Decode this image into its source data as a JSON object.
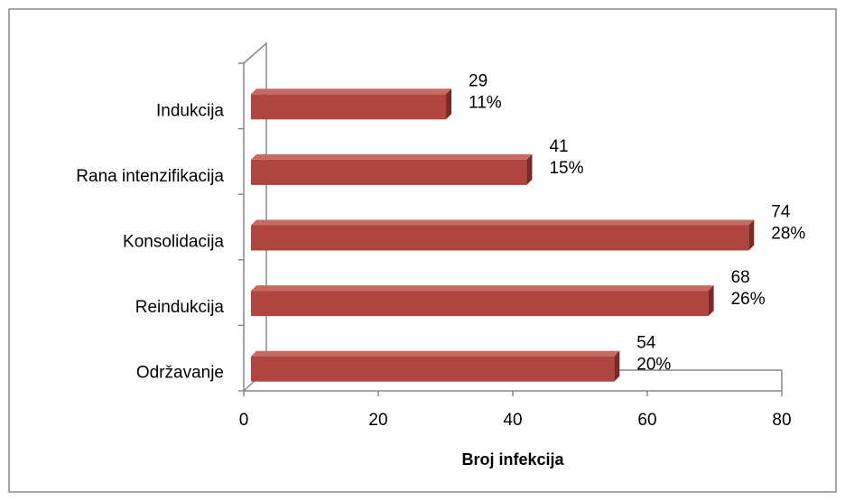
{
  "chart_data": {
    "type": "bar",
    "orientation": "horizontal",
    "categories": [
      "Indukcija",
      "Rana intenzifikacija",
      "Konsolidacija",
      "Reindukcija",
      "Održavanje"
    ],
    "values": [
      29,
      41,
      74,
      68,
      54
    ],
    "percent_labels": [
      "11%",
      "15%",
      "28%",
      "26%",
      "20%"
    ],
    "color": "#b0453f",
    "xlabel": "Broj infekcija",
    "xlim": [
      0,
      80
    ],
    "xticks": [
      0,
      20,
      40,
      60,
      80
    ]
  }
}
